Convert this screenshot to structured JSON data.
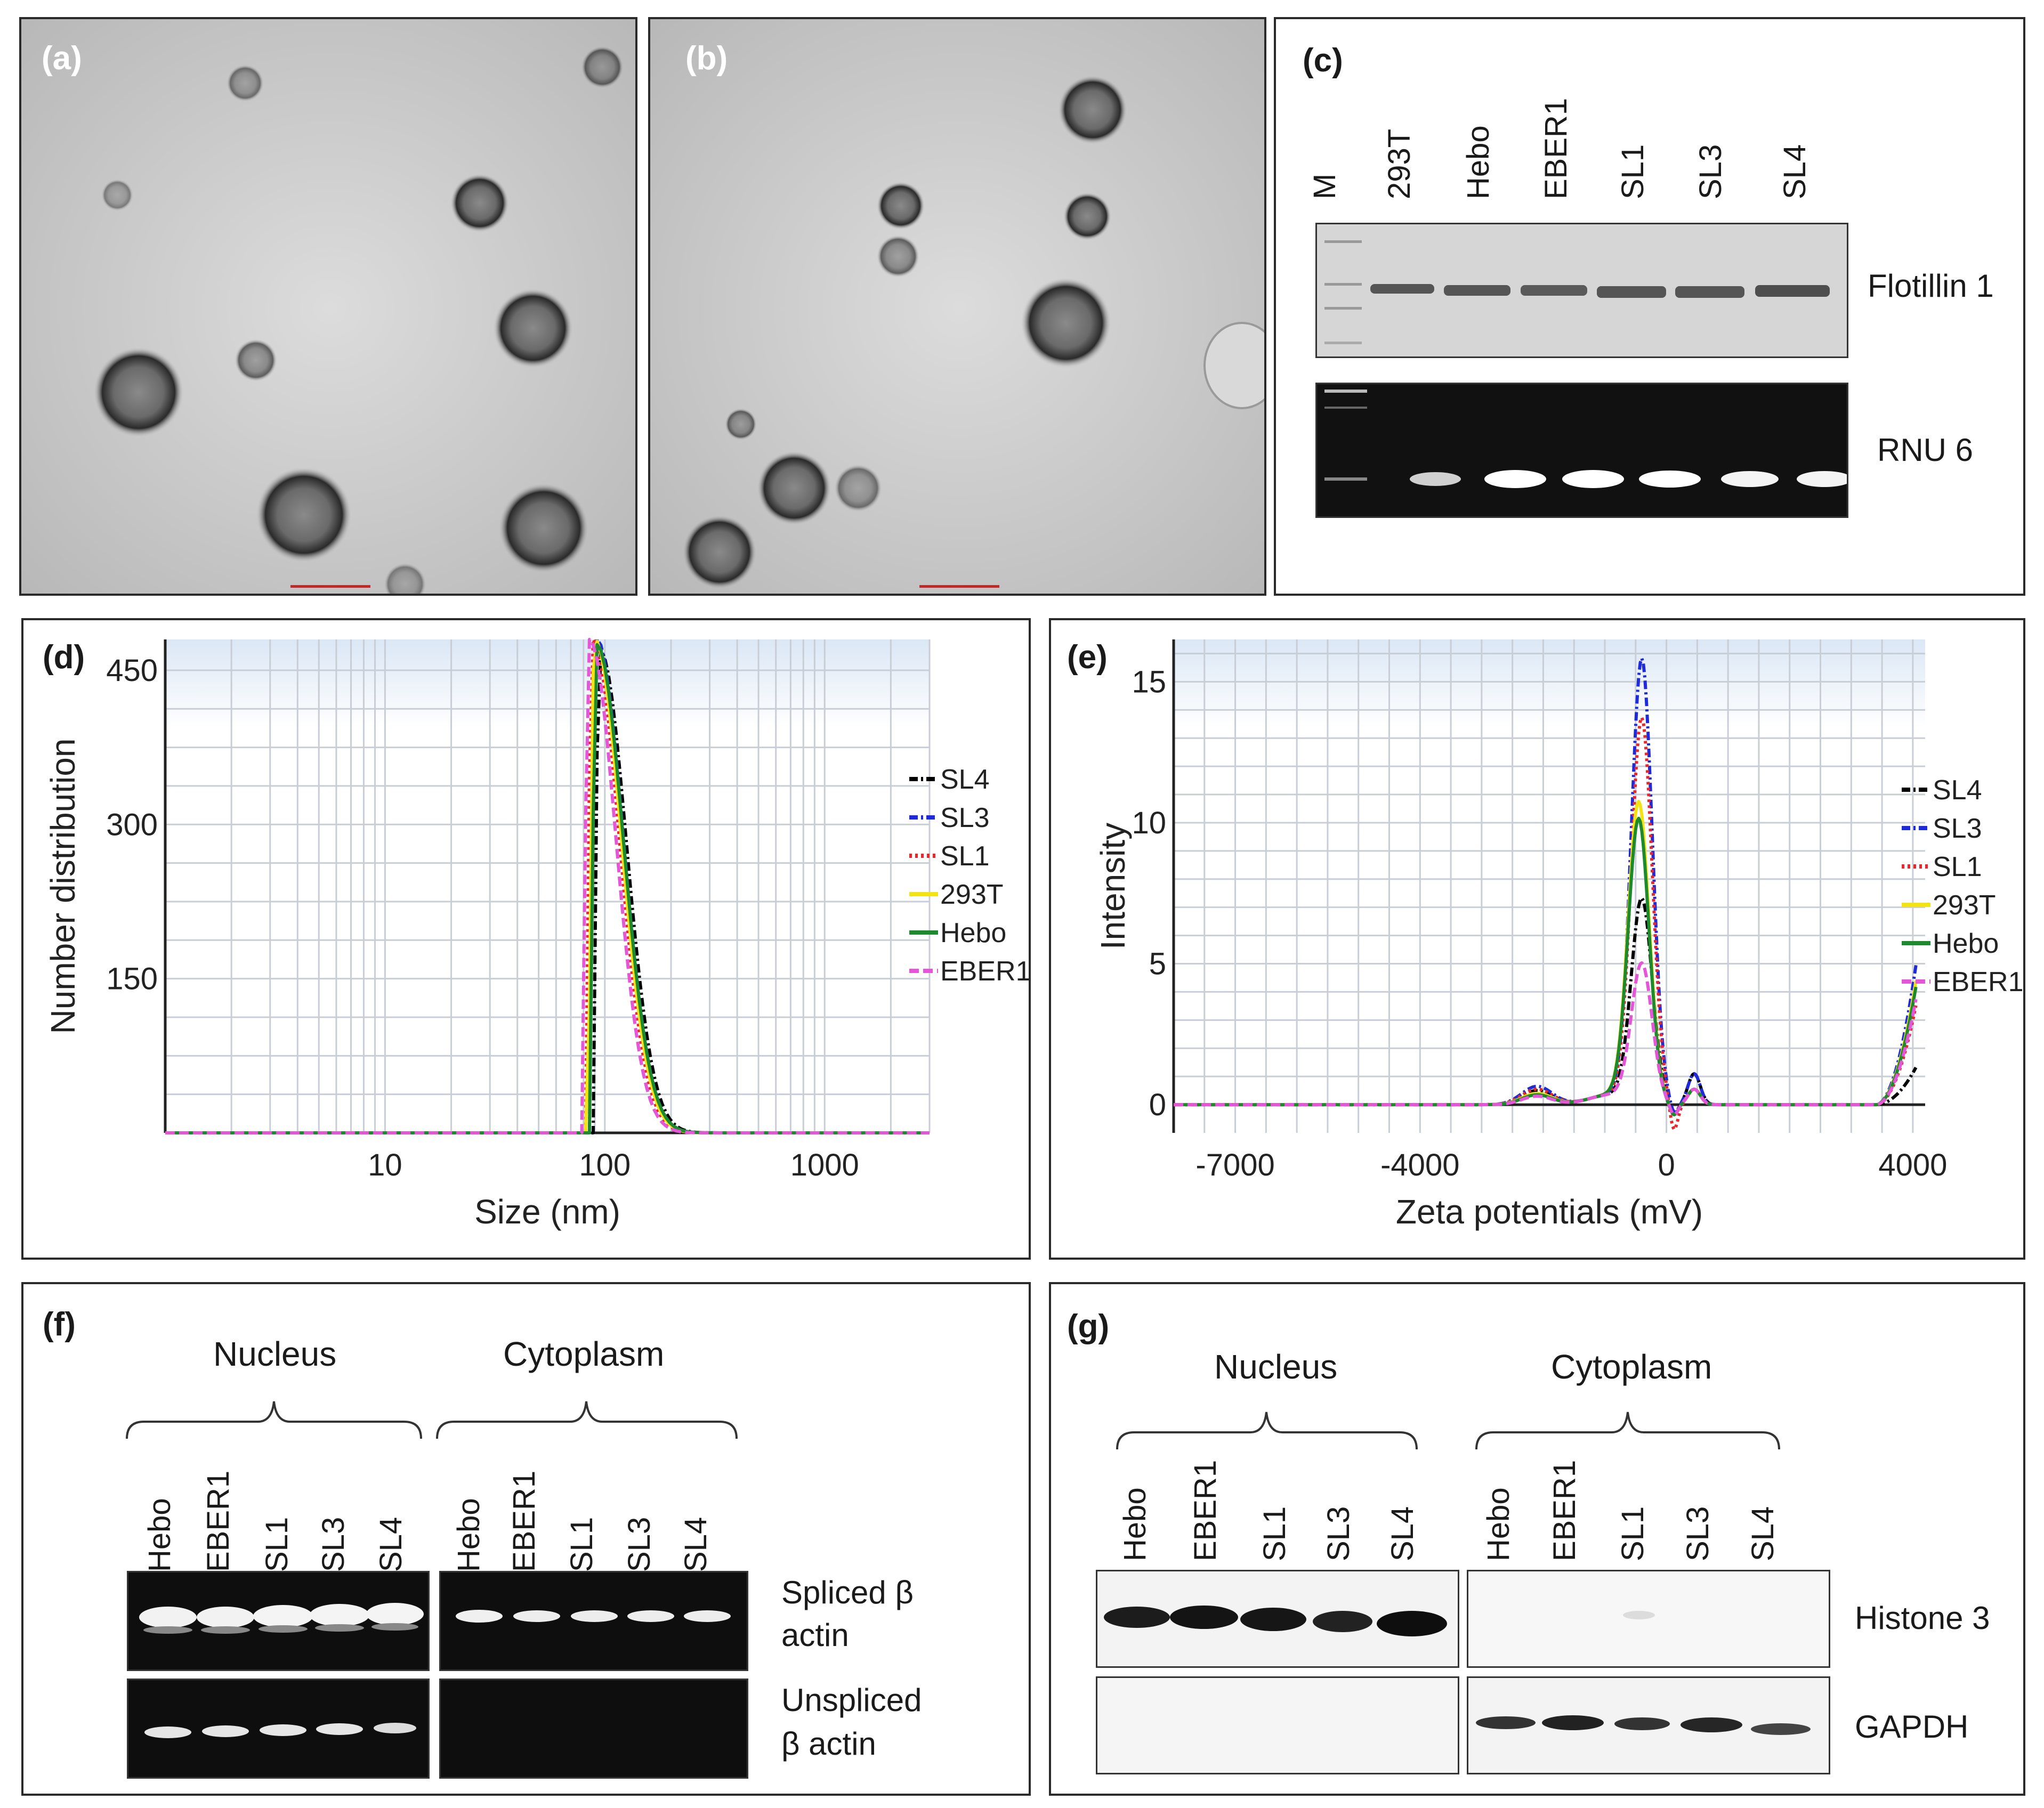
{
  "panel_labels": {
    "a": "(a)",
    "b": "(b)",
    "c": "(c)",
    "d": "(d)",
    "e": "(e)",
    "f": "(f)",
    "g": "(g)"
  },
  "panel_c": {
    "lanes": [
      "M",
      "293T",
      "Hebo",
      "EBER1",
      "SL1",
      "SL3",
      "SL4"
    ],
    "blot_label": "Flotillin 1",
    "gel_label": "RNU 6"
  },
  "panel_f": {
    "group_nucleus": "Nucleus",
    "group_cytoplasm": "Cytoplasm",
    "lanes": [
      "Hebo",
      "EBER1",
      "SL1",
      "SL3",
      "SL4"
    ],
    "row1_label_line1": "Spliced β",
    "row1_label_line2": "actin",
    "row2_label_line1": "Unspliced",
    "row2_label_line2": "β actin"
  },
  "panel_g": {
    "group_nucleus": "Nucleus",
    "group_cytoplasm": "Cytoplasm",
    "lanes": [
      "Hebo",
      "EBER1",
      "SL1",
      "SL3",
      "SL4"
    ],
    "row1_label": "Histone 3",
    "row2_label": "GAPDH"
  },
  "chart_data": [
    {
      "id": "d",
      "type": "line",
      "xlabel": "Size (nm)",
      "ylabel": "Number distribution",
      "x_scale": "log",
      "xlim": [
        1,
        3000
      ],
      "ylim": [
        0,
        480
      ],
      "x_ticks": [
        10,
        100,
        1000
      ],
      "y_ticks": [
        150,
        300,
        450
      ],
      "grid": true,
      "legend": "right",
      "series": [
        {
          "name": "SL4",
          "color": "#000000",
          "style": "dashdot",
          "peak": [
            95,
            470
          ]
        },
        {
          "name": "SL3",
          "color": "#1f2bd8",
          "style": "dashdot",
          "peak": [
            92,
            480
          ]
        },
        {
          "name": "SL1",
          "color": "#e8262b",
          "style": "dotted",
          "peak": [
            88,
            480
          ]
        },
        {
          "name": "293T",
          "color": "#f2e313",
          "style": "solid",
          "peak": [
            90,
            480
          ]
        },
        {
          "name": "Hebo",
          "color": "#1e8a2e",
          "style": "solid",
          "peak": [
            92,
            475
          ]
        },
        {
          "name": "EBER1",
          "color": "#e455d8",
          "style": "dashed",
          "peak": [
            85,
            480
          ]
        }
      ]
    },
    {
      "id": "e",
      "type": "line",
      "xlabel": "Zeta potentials (mV)",
      "ylabel": "Intensity",
      "xlim": [
        -8000,
        4200
      ],
      "ylim": [
        -1,
        16.5
      ],
      "x_ticks": [
        -7000,
        -4000,
        0,
        4000
      ],
      "y_ticks": [
        0,
        5,
        10,
        15
      ],
      "grid": true,
      "legend": "right",
      "series": [
        {
          "name": "SL4",
          "color": "#000000",
          "style": "dashdot",
          "peak": [
            -400,
            7.2
          ]
        },
        {
          "name": "SL3",
          "color": "#1f2bd8",
          "style": "dashdot",
          "peak": [
            -400,
            15.7
          ]
        },
        {
          "name": "SL1",
          "color": "#e8262b",
          "style": "dotted",
          "peak": [
            -400,
            13.6
          ]
        },
        {
          "name": "293T",
          "color": "#f2e313",
          "style": "solid",
          "peak": [
            -450,
            10.6
          ]
        },
        {
          "name": "Hebo",
          "color": "#1e8a2e",
          "style": "solid",
          "peak": [
            -450,
            10.0
          ]
        },
        {
          "name": "EBER1",
          "color": "#e455d8",
          "style": "dashed",
          "peak": [
            -400,
            4.9
          ]
        }
      ]
    }
  ]
}
